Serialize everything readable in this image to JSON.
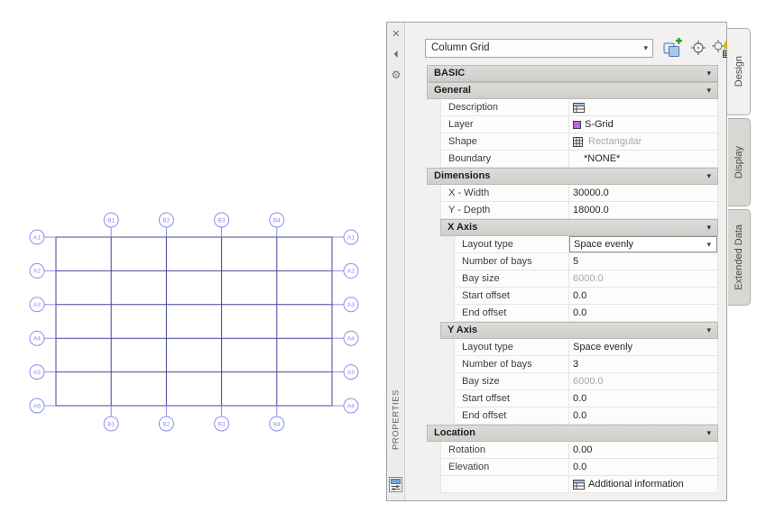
{
  "drawing": {
    "row_labels": [
      "A1",
      "A2",
      "A3",
      "A4",
      "A5",
      "A6"
    ],
    "col_labels": [
      "B1",
      "B2",
      "B3",
      "B4"
    ],
    "grid_color": "#45459a",
    "bubble_color": "#8c8cee"
  },
  "palette": {
    "strip": {
      "close": "✕",
      "pin": "⏴",
      "gear": "⚙",
      "title": "PROPERTIES"
    },
    "selector": {
      "value": "Column Grid"
    },
    "toolbar": [
      {
        "name": "select-objects-icon"
      },
      {
        "name": "quick-select-icon"
      },
      {
        "name": "property-filter-icon"
      }
    ],
    "tabs": [
      {
        "label": "Design",
        "active": true
      },
      {
        "label": "Display",
        "active": false
      },
      {
        "label": "Extended Data",
        "active": false
      }
    ],
    "sections": [
      {
        "title": "BASIC",
        "level": 0,
        "rows": []
      },
      {
        "title": "General",
        "level": 0,
        "rows": [
          {
            "label": "Description",
            "value": "",
            "icon": "description-icon"
          },
          {
            "label": "Layer",
            "value": "S-Grid",
            "icon": "layer-color-swatch"
          },
          {
            "label": "Shape",
            "value": "Rectangular",
            "icon": "shape-grid-icon",
            "muted": true
          },
          {
            "label": "Boundary",
            "value": "*NONE*",
            "pad": true
          }
        ]
      },
      {
        "title": "Dimensions",
        "level": 0,
        "rows": [
          {
            "label": "X - Width",
            "value": "30000.0"
          },
          {
            "label": "Y - Depth",
            "value": "18000.0"
          }
        ]
      },
      {
        "title": "X Axis",
        "level": 1,
        "rows": [
          {
            "label": "Layout type",
            "value": "Space evenly",
            "control": "combobox"
          },
          {
            "label": "Number of bays",
            "value": "5"
          },
          {
            "label": "Bay size",
            "value": "6000.0",
            "muted": true
          },
          {
            "label": "Start offset",
            "value": "0.0"
          },
          {
            "label": "End offset",
            "value": "0.0"
          }
        ]
      },
      {
        "title": "Y Axis",
        "level": 1,
        "rows": [
          {
            "label": "Layout type",
            "value": "Space evenly"
          },
          {
            "label": "Number of bays",
            "value": "3"
          },
          {
            "label": "Bay size",
            "value": "6000.0",
            "muted": true
          },
          {
            "label": "Start offset",
            "value": "0.0"
          },
          {
            "label": "End offset",
            "value": "0.0"
          }
        ]
      },
      {
        "title": "Location",
        "level": 0,
        "rows": [
          {
            "label": "Rotation",
            "value": "0.00"
          },
          {
            "label": "Elevation",
            "value": "0.0"
          },
          {
            "label": "",
            "value": "Additional information",
            "icon": "additional-information-icon"
          }
        ]
      }
    ]
  },
  "icons": {
    "chevron_down": "▾"
  }
}
